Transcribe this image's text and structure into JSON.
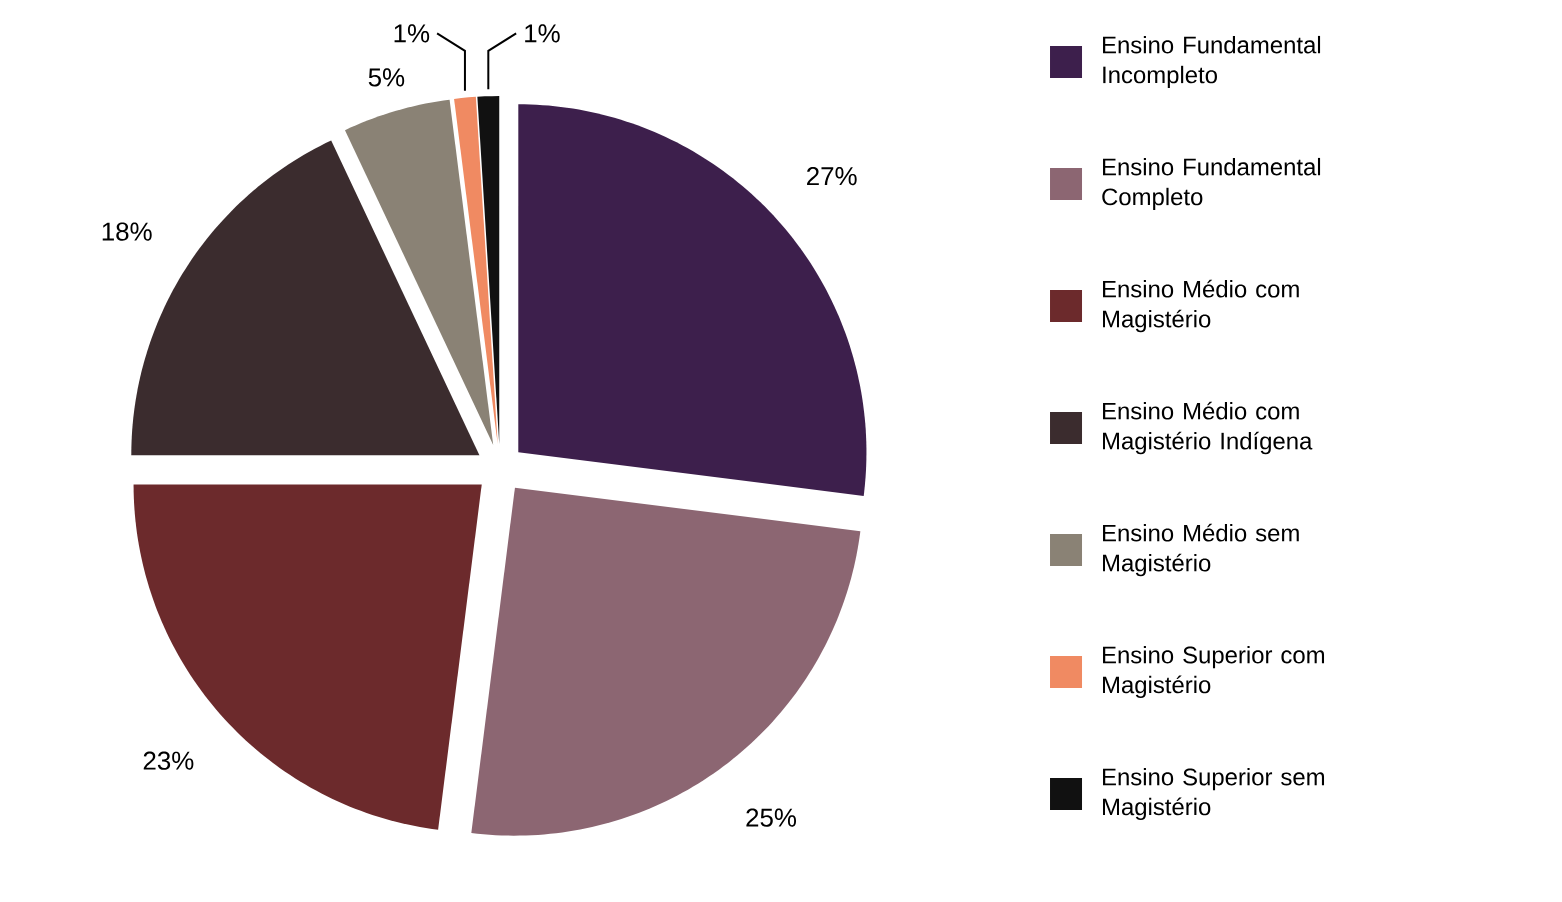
{
  "chart_data": {
    "type": "pie",
    "categories": [
      "Ensino Fundamental Incompleto",
      "Ensino Fundamental Completo",
      "Ensino Médio com Magistério",
      "Ensino Médio com Magistério Indígena",
      "Ensino Médio sem Magistério",
      "Ensino Superior com Magistério",
      "Ensino Superior sem Magistério"
    ],
    "values": [
      27,
      25,
      23,
      18,
      5,
      1,
      1
    ],
    "value_labels": [
      "27%",
      "25%",
      "23%",
      "18%",
      "5%",
      "1%",
      "1%"
    ],
    "colors": [
      "#3d1f4c",
      "#8c6672",
      "#6c2a2c",
      "#3b2c2e",
      "#8a8275",
      "#f08a62",
      "#111111"
    ],
    "legend": "right"
  }
}
